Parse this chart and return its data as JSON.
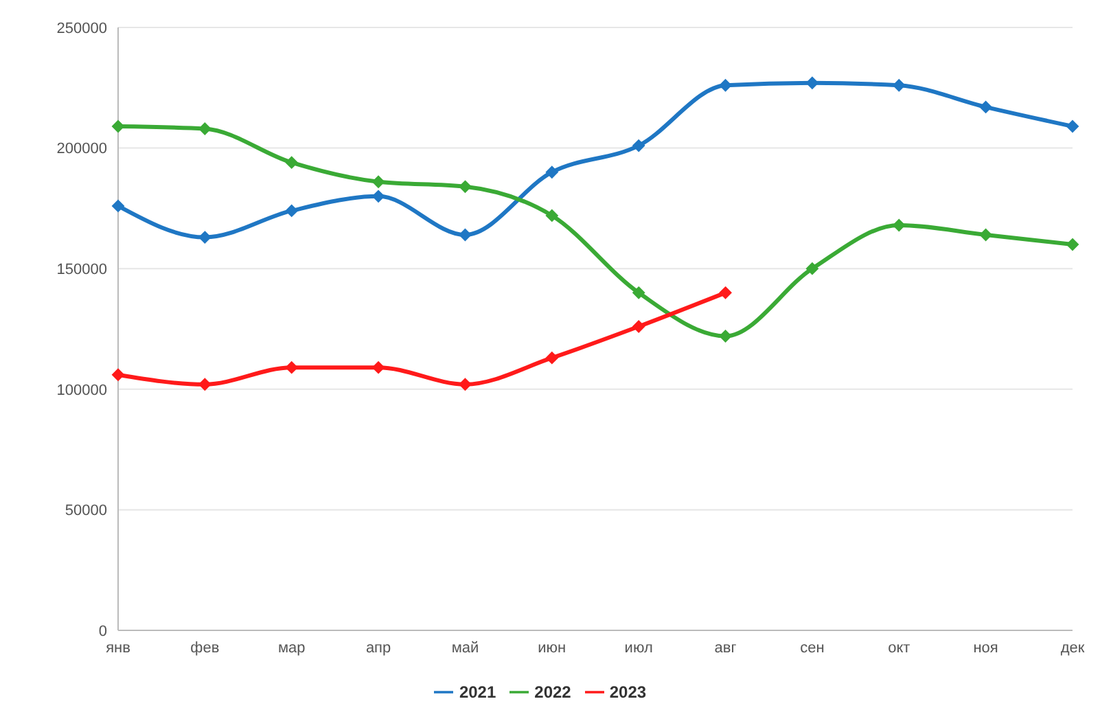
{
  "chart_data": {
    "type": "line",
    "categories": [
      "янв",
      "фев",
      "мар",
      "апр",
      "май",
      "июн",
      "июл",
      "авг",
      "сен",
      "окт",
      "ноя",
      "дек"
    ],
    "series": [
      {
        "name": "2021",
        "color": "#1f77c4",
        "values": [
          176000,
          163000,
          174000,
          180000,
          164000,
          190000,
          201000,
          226000,
          227000,
          226000,
          217000,
          209000
        ]
      },
      {
        "name": "2022",
        "color": "#3aaa35",
        "values": [
          209000,
          208000,
          194000,
          186000,
          184000,
          172000,
          140000,
          122000,
          150000,
          168000,
          164000,
          160000
        ]
      },
      {
        "name": "2023",
        "color": "#ff1a1a",
        "values": [
          106000,
          102000,
          109000,
          109000,
          102000,
          113000,
          126000,
          140000,
          null,
          null,
          null,
          null
        ]
      }
    ],
    "ylim": [
      0,
      250000
    ],
    "yticks": [
      0,
      50000,
      100000,
      150000,
      200000,
      250000
    ],
    "grid": "y",
    "legend": "bottom",
    "marker": "diamond",
    "line_style": "solid"
  }
}
